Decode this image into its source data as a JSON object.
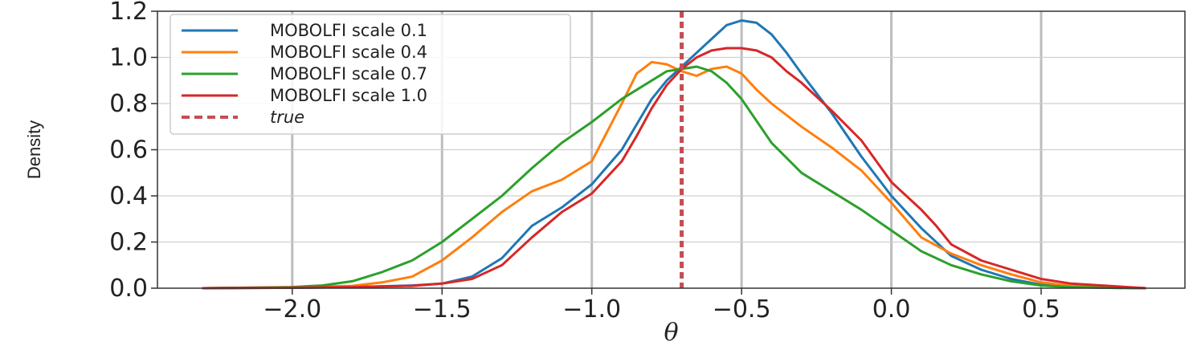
{
  "chart_data": {
    "type": "line",
    "xlabel": "θ",
    "ylabel": "Density",
    "xlim": [
      -2.45,
      0.98
    ],
    "ylim": [
      0.0,
      1.2
    ],
    "xticks": [
      -2.0,
      -1.5,
      -1.0,
      -0.5,
      0.0,
      0.5
    ],
    "xtick_labels": [
      "−2.0",
      "−1.5",
      "−1.0",
      "−0.5",
      "0.0",
      "0.5"
    ],
    "yticks": [
      0.0,
      0.2,
      0.4,
      0.6,
      0.8,
      1.0,
      1.2
    ],
    "ytick_labels": [
      "0.0",
      "0.2",
      "0.4",
      "0.6",
      "0.8",
      "1.0",
      "1.2"
    ],
    "grid": "vertical",
    "legend_position": "top-left",
    "reference_line": {
      "name": "true",
      "x": -0.7,
      "color": "#c44e52",
      "style": "dashed"
    },
    "series": [
      {
        "name": "MOBOLFI scale 0.1",
        "color": "#1f77b4",
        "x": [
          -2.3,
          -2.0,
          -1.8,
          -1.6,
          -1.5,
          -1.4,
          -1.3,
          -1.2,
          -1.1,
          -1.0,
          -0.9,
          -0.85,
          -0.8,
          -0.75,
          -0.7,
          -0.65,
          -0.6,
          -0.55,
          -0.5,
          -0.45,
          -0.4,
          -0.35,
          -0.3,
          -0.2,
          -0.1,
          0.0,
          0.1,
          0.2,
          0.3,
          0.4,
          0.5,
          0.6,
          0.7,
          0.85
        ],
        "values": [
          0.0,
          0.002,
          0.005,
          0.012,
          0.02,
          0.05,
          0.13,
          0.27,
          0.35,
          0.45,
          0.6,
          0.71,
          0.82,
          0.9,
          0.96,
          1.02,
          1.08,
          1.14,
          1.16,
          1.15,
          1.1,
          1.02,
          0.93,
          0.76,
          0.57,
          0.4,
          0.26,
          0.14,
          0.08,
          0.04,
          0.015,
          0.006,
          0.002,
          0.0
        ]
      },
      {
        "name": "MOBOLFI scale 0.4",
        "color": "#ff7f0e",
        "x": [
          -2.3,
          -2.0,
          -1.8,
          -1.7,
          -1.6,
          -1.5,
          -1.4,
          -1.3,
          -1.2,
          -1.1,
          -1.0,
          -0.9,
          -0.85,
          -0.8,
          -0.75,
          -0.7,
          -0.65,
          -0.6,
          -0.55,
          -0.5,
          -0.45,
          -0.4,
          -0.3,
          -0.2,
          -0.1,
          0.0,
          0.1,
          0.2,
          0.3,
          0.4,
          0.5,
          0.6,
          0.85
        ],
        "values": [
          0.0,
          0.004,
          0.01,
          0.025,
          0.05,
          0.12,
          0.22,
          0.33,
          0.42,
          0.47,
          0.55,
          0.8,
          0.93,
          0.98,
          0.97,
          0.94,
          0.92,
          0.95,
          0.96,
          0.93,
          0.86,
          0.8,
          0.7,
          0.61,
          0.51,
          0.37,
          0.22,
          0.15,
          0.1,
          0.06,
          0.025,
          0.01,
          0.0
        ]
      },
      {
        "name": "MOBOLFI scale 0.7",
        "color": "#2ca02c",
        "x": [
          -2.3,
          -2.0,
          -1.9,
          -1.8,
          -1.7,
          -1.6,
          -1.5,
          -1.4,
          -1.3,
          -1.2,
          -1.1,
          -1.0,
          -0.9,
          -0.8,
          -0.75,
          -0.7,
          -0.65,
          -0.6,
          -0.55,
          -0.5,
          -0.4,
          -0.3,
          -0.2,
          -0.1,
          0.0,
          0.1,
          0.2,
          0.3,
          0.4,
          0.5,
          0.6,
          0.7,
          0.85
        ],
        "values": [
          0.0,
          0.005,
          0.012,
          0.03,
          0.07,
          0.12,
          0.2,
          0.3,
          0.4,
          0.52,
          0.63,
          0.72,
          0.82,
          0.9,
          0.94,
          0.95,
          0.96,
          0.94,
          0.89,
          0.82,
          0.63,
          0.5,
          0.42,
          0.34,
          0.25,
          0.16,
          0.1,
          0.06,
          0.03,
          0.012,
          0.005,
          0.002,
          0.0
        ]
      },
      {
        "name": "MOBOLFI scale 1.0",
        "color": "#d62728",
        "x": [
          -2.3,
          -2.0,
          -1.8,
          -1.6,
          -1.5,
          -1.4,
          -1.3,
          -1.2,
          -1.1,
          -1.0,
          -0.9,
          -0.85,
          -0.8,
          -0.75,
          -0.7,
          -0.65,
          -0.6,
          -0.55,
          -0.5,
          -0.45,
          -0.4,
          -0.35,
          -0.3,
          -0.2,
          -0.1,
          0.0,
          0.1,
          0.15,
          0.2,
          0.3,
          0.4,
          0.5,
          0.6,
          0.85
        ],
        "values": [
          0.0,
          0.002,
          0.005,
          0.01,
          0.02,
          0.04,
          0.1,
          0.22,
          0.33,
          0.41,
          0.55,
          0.66,
          0.78,
          0.88,
          0.95,
          1.0,
          1.03,
          1.04,
          1.04,
          1.03,
          1.0,
          0.94,
          0.89,
          0.77,
          0.64,
          0.46,
          0.34,
          0.27,
          0.19,
          0.12,
          0.08,
          0.04,
          0.02,
          0.0
        ]
      }
    ]
  },
  "legend": {
    "items": [
      {
        "label": "MOBOLFI scale 0.1",
        "color": "#1f77b4",
        "style": "solid"
      },
      {
        "label": "MOBOLFI scale 0.4",
        "color": "#ff7f0e",
        "style": "solid"
      },
      {
        "label": "MOBOLFI scale 0.7",
        "color": "#2ca02c",
        "style": "solid"
      },
      {
        "label": "MOBOLFI scale 1.0",
        "color": "#d62728",
        "style": "solid"
      },
      {
        "label": "true",
        "color": "#c44e52",
        "style": "dashed"
      }
    ]
  }
}
